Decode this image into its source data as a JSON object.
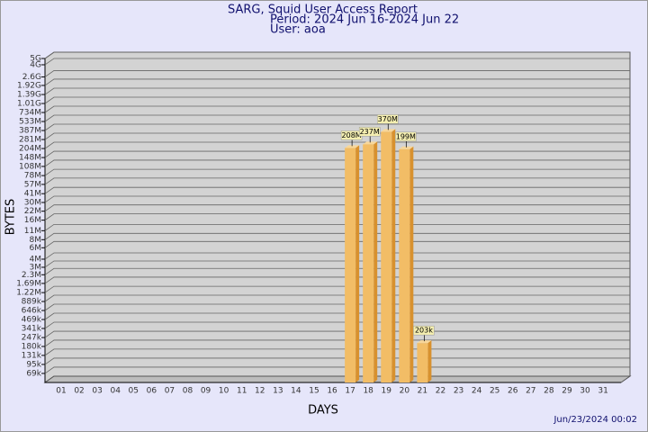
{
  "chart_data": {
    "type": "bar3d",
    "title": "SARG, Squid User Access Report",
    "subtitle": "Period: 2024 Jun 16-2024 Jun 22",
    "user": "User: aoa",
    "x_label": "DAYS",
    "y_label": "BYTES",
    "footer": "Jun/23/2024 00:02",
    "log_scale": true,
    "grid": true,
    "color": "#f2bd66",
    "categories": [
      "01",
      "02",
      "03",
      "04",
      "05",
      "06",
      "07",
      "08",
      "09",
      "10",
      "11",
      "12",
      "13",
      "14",
      "15",
      "16",
      "17",
      "18",
      "19",
      "20",
      "21",
      "22",
      "23",
      "24",
      "25",
      "26",
      "27",
      "28",
      "29",
      "30",
      "31"
    ],
    "values": [
      null,
      null,
      null,
      null,
      null,
      null,
      null,
      null,
      null,
      null,
      null,
      null,
      null,
      null,
      null,
      null,
      208000000,
      237000000,
      370000000,
      199000000,
      203000,
      null,
      null,
      null,
      null,
      null,
      null,
      null,
      null,
      null,
      null
    ],
    "value_labels": [
      null,
      null,
      null,
      null,
      null,
      null,
      null,
      null,
      null,
      null,
      null,
      null,
      null,
      null,
      null,
      null,
      "208M",
      "237M",
      "370M",
      "199M",
      "203k",
      null,
      null,
      null,
      null,
      null,
      null,
      null,
      null,
      null,
      null
    ],
    "ylim": [
      50000,
      5000000000
    ],
    "yticks": [
      {
        "value": 69000,
        "label": "69k"
      },
      {
        "value": 95000,
        "label": "95k"
      },
      {
        "value": 131000,
        "label": "131k"
      },
      {
        "value": 180000,
        "label": "180k"
      },
      {
        "value": 247000,
        "label": "247k"
      },
      {
        "value": 341000,
        "label": "341k"
      },
      {
        "value": 469000,
        "label": "469k"
      },
      {
        "value": 646000,
        "label": "646k"
      },
      {
        "value": 889000,
        "label": "889k"
      },
      {
        "value": 1220000,
        "label": "1.22M"
      },
      {
        "value": 1690000,
        "label": "1.69M"
      },
      {
        "value": 2300000,
        "label": "2.3M"
      },
      {
        "value": 3000000,
        "label": "3M"
      },
      {
        "value": 4000000,
        "label": "4M"
      },
      {
        "value": 6000000,
        "label": "6M"
      },
      {
        "value": 8000000,
        "label": "8M"
      },
      {
        "value": 11000000,
        "label": "11M"
      },
      {
        "value": 16000000,
        "label": "16M"
      },
      {
        "value": 22000000,
        "label": "22M"
      },
      {
        "value": 30000000,
        "label": "30M"
      },
      {
        "value": 41000000,
        "label": "41M"
      },
      {
        "value": 57000000,
        "label": "57M"
      },
      {
        "value": 78000000,
        "label": "78M"
      },
      {
        "value": 108000000,
        "label": "108M"
      },
      {
        "value": 148000000,
        "label": "148M"
      },
      {
        "value": 204000000,
        "label": "204M"
      },
      {
        "value": 281000000,
        "label": "281M"
      },
      {
        "value": 387000000,
        "label": "387M"
      },
      {
        "value": 533000000,
        "label": "533M"
      },
      {
        "value": 734000000,
        "label": "734M"
      },
      {
        "value": 1010000000,
        "label": "1.01G"
      },
      {
        "value": 1390000000,
        "label": "1.39G"
      },
      {
        "value": 1920000000,
        "label": "1.92G"
      },
      {
        "value": 2600000000,
        "label": "2.6G"
      },
      {
        "value": 4000000000,
        "label": "4G"
      },
      {
        "value": 5000000000,
        "label": "5G"
      }
    ]
  }
}
